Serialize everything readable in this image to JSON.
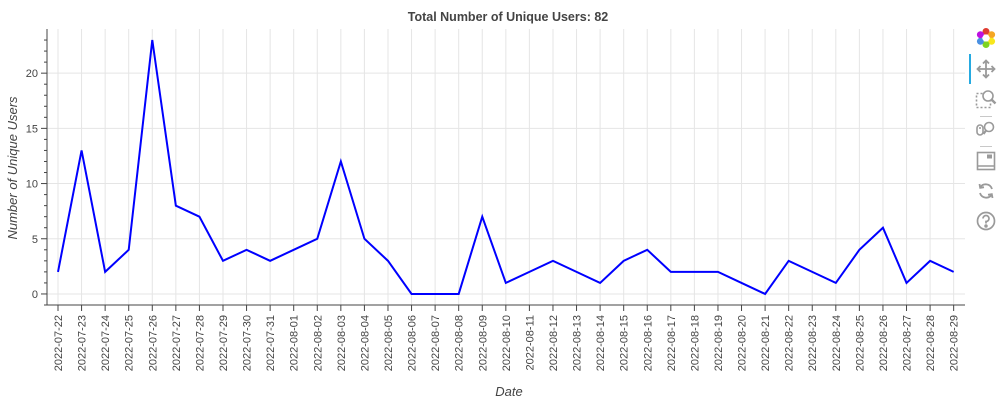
{
  "chart_data": {
    "type": "line",
    "title": "Total Number of Unique Users: 82",
    "xlabel": "Date",
    "ylabel": "Number of Unique Users",
    "x": [
      "2022-07-22",
      "2022-07-23",
      "2022-07-24",
      "2022-07-25",
      "2022-07-26",
      "2022-07-27",
      "2022-07-28",
      "2022-07-29",
      "2022-07-30",
      "2022-07-31",
      "2022-08-01",
      "2022-08-02",
      "2022-08-03",
      "2022-08-04",
      "2022-08-05",
      "2022-08-06",
      "2022-08-07",
      "2022-08-08",
      "2022-08-09",
      "2022-08-10",
      "2022-08-11",
      "2022-08-12",
      "2022-08-13",
      "2022-08-14",
      "2022-08-15",
      "2022-08-16",
      "2022-08-17",
      "2022-08-18",
      "2022-08-19",
      "2022-08-20",
      "2022-08-21",
      "2022-08-22",
      "2022-08-23",
      "2022-08-24",
      "2022-08-25",
      "2022-08-26",
      "2022-08-27",
      "2022-08-28",
      "2022-08-29"
    ],
    "series": [
      {
        "values": [
          2,
          13,
          2,
          4,
          23,
          8,
          7,
          3,
          4,
          3,
          4,
          5,
          12,
          5,
          3,
          0,
          0,
          0,
          7,
          1,
          2,
          3,
          2,
          1,
          3,
          4,
          2,
          2,
          2,
          1,
          0,
          3,
          2,
          1,
          4,
          6,
          1,
          3,
          2
        ],
        "color": "#0000ff"
      }
    ],
    "yticks": [
      0,
      5,
      10,
      15,
      20
    ],
    "ylim": [
      -1,
      24
    ],
    "grid": true,
    "legend": "none"
  },
  "toolbar": {
    "tools": [
      {
        "name": "bokeh-logo-icon",
        "interactable": true
      },
      {
        "name": "pan-tool-icon",
        "interactable": true,
        "active": true
      },
      {
        "name": "box-zoom-tool-icon",
        "interactable": true
      },
      {
        "name": "wheel-zoom-tool-icon",
        "interactable": true
      },
      {
        "name": "save-tool-icon",
        "interactable": true
      },
      {
        "name": "reset-tool-icon",
        "interactable": true
      },
      {
        "name": "help-tool-icon",
        "interactable": true
      }
    ]
  }
}
